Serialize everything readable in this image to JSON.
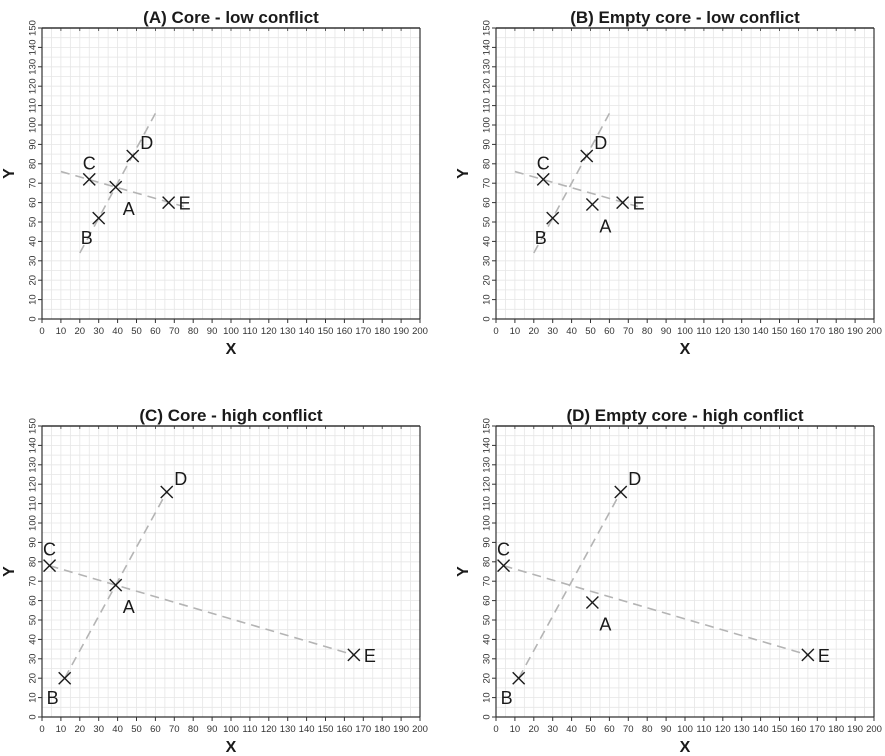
{
  "chart_data": [
    {
      "type": "scatter",
      "title": "(A) Core - low conflict",
      "xlabel": "X",
      "ylabel": "Y",
      "xlim": [
        0,
        200
      ],
      "ylim": [
        0,
        150
      ],
      "x_ticks": [
        "0",
        "10",
        "20",
        "30",
        "40",
        "50",
        "60",
        "70",
        "80",
        "90",
        "100",
        "110",
        "120",
        "130",
        "140",
        "150",
        "160",
        "170",
        "180",
        "190",
        "200"
      ],
      "y_ticks": [
        "0",
        "10",
        "20",
        "30",
        "40",
        "50",
        "60",
        "70",
        "80",
        "90",
        "100",
        "110",
        "120",
        "130",
        "140",
        "150"
      ],
      "grid": true,
      "points": [
        {
          "label": "A",
          "x": 39,
          "y": 68,
          "label_pos": "below-right"
        },
        {
          "label": "B",
          "x": 30,
          "y": 52,
          "label_pos": "below-left"
        },
        {
          "label": "C",
          "x": 25,
          "y": 72,
          "label_pos": "above-left"
        },
        {
          "label": "D",
          "x": 48,
          "y": 84,
          "label_pos": "above-right"
        },
        {
          "label": "E",
          "x": 67,
          "y": 60,
          "label_pos": "right"
        }
      ],
      "lines": [
        {
          "x1": 10,
          "y1": 76,
          "x2": 75,
          "y2": 58
        },
        {
          "x1": 20,
          "y1": 34,
          "x2": 60,
          "y2": 106
        }
      ]
    },
    {
      "type": "scatter",
      "title": "(B) Empty core - low conflict",
      "xlabel": "X",
      "ylabel": "Y",
      "xlim": [
        0,
        200
      ],
      "ylim": [
        0,
        150
      ],
      "x_ticks": [
        "0",
        "10",
        "20",
        "30",
        "40",
        "50",
        "60",
        "70",
        "80",
        "90",
        "100",
        "110",
        "120",
        "130",
        "140",
        "150",
        "160",
        "170",
        "180",
        "190",
        "200"
      ],
      "y_ticks": [
        "0",
        "10",
        "20",
        "30",
        "40",
        "50",
        "60",
        "70",
        "80",
        "90",
        "100",
        "110",
        "120",
        "130",
        "140",
        "150"
      ],
      "grid": true,
      "points": [
        {
          "label": "A",
          "x": 51,
          "y": 59,
          "label_pos": "below-right"
        },
        {
          "label": "B",
          "x": 30,
          "y": 52,
          "label_pos": "below-left"
        },
        {
          "label": "C",
          "x": 25,
          "y": 72,
          "label_pos": "above-left"
        },
        {
          "label": "D",
          "x": 48,
          "y": 84,
          "label_pos": "above-right"
        },
        {
          "label": "E",
          "x": 67,
          "y": 60,
          "label_pos": "right"
        }
      ],
      "lines": [
        {
          "x1": 10,
          "y1": 76,
          "x2": 75,
          "y2": 58
        },
        {
          "x1": 20,
          "y1": 34,
          "x2": 60,
          "y2": 106
        }
      ]
    },
    {
      "type": "scatter",
      "title": "(C) Core - high conflict",
      "xlabel": "X",
      "ylabel": "Y",
      "xlim": [
        0,
        200
      ],
      "ylim": [
        0,
        150
      ],
      "x_ticks": [
        "0",
        "10",
        "20",
        "30",
        "40",
        "50",
        "60",
        "70",
        "80",
        "90",
        "100",
        "110",
        "120",
        "130",
        "140",
        "150",
        "160",
        "170",
        "180",
        "190",
        "200"
      ],
      "y_ticks": [
        "0",
        "10",
        "20",
        "30",
        "40",
        "50",
        "60",
        "70",
        "80",
        "90",
        "100",
        "110",
        "120",
        "130",
        "140",
        "150"
      ],
      "grid": true,
      "points": [
        {
          "label": "A",
          "x": 39,
          "y": 68,
          "label_pos": "below-right"
        },
        {
          "label": "B",
          "x": 12,
          "y": 20,
          "label_pos": "below-left"
        },
        {
          "label": "C",
          "x": 4,
          "y": 78,
          "label_pos": "above-left"
        },
        {
          "label": "D",
          "x": 66,
          "y": 116,
          "label_pos": "above-right"
        },
        {
          "label": "E",
          "x": 165,
          "y": 32,
          "label_pos": "right"
        }
      ],
      "lines": [
        {
          "x1": 4,
          "y1": 78,
          "x2": 165,
          "y2": 32
        },
        {
          "x1": 12,
          "y1": 20,
          "x2": 66,
          "y2": 116
        }
      ]
    },
    {
      "type": "scatter",
      "title": "(D) Empty core - high conflict",
      "xlabel": "X",
      "ylabel": "Y",
      "xlim": [
        0,
        200
      ],
      "ylim": [
        0,
        150
      ],
      "x_ticks": [
        "0",
        "10",
        "20",
        "30",
        "40",
        "50",
        "60",
        "70",
        "80",
        "90",
        "100",
        "110",
        "120",
        "130",
        "140",
        "150",
        "160",
        "170",
        "180",
        "190",
        "200"
      ],
      "y_ticks": [
        "0",
        "10",
        "20",
        "30",
        "40",
        "50",
        "60",
        "70",
        "80",
        "90",
        "100",
        "110",
        "120",
        "130",
        "140",
        "150"
      ],
      "grid": true,
      "points": [
        {
          "label": "A",
          "x": 51,
          "y": 59,
          "label_pos": "below-right"
        },
        {
          "label": "B",
          "x": 12,
          "y": 20,
          "label_pos": "below-left"
        },
        {
          "label": "C",
          "x": 4,
          "y": 78,
          "label_pos": "above-left"
        },
        {
          "label": "D",
          "x": 66,
          "y": 116,
          "label_pos": "above-right"
        },
        {
          "label": "E",
          "x": 165,
          "y": 32,
          "label_pos": "right"
        }
      ],
      "lines": [
        {
          "x1": 4,
          "y1": 78,
          "x2": 165,
          "y2": 32
        },
        {
          "x1": 12,
          "y1": 20,
          "x2": 66,
          "y2": 116
        }
      ]
    }
  ]
}
